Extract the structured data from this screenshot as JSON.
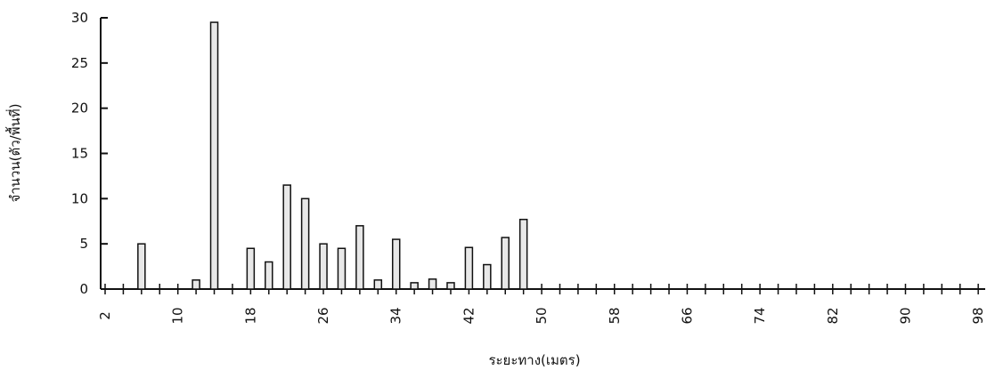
{
  "chart_data": {
    "type": "bar",
    "x_label": "ระยะทาง(เมตร)",
    "y_label": "จำนวน(ตัว/พื้นที่)",
    "categories": [
      "2",
      null,
      null,
      null,
      "10",
      null,
      null,
      null,
      "18",
      null,
      null,
      null,
      "26",
      null,
      null,
      null,
      "34",
      null,
      null,
      null,
      "42",
      null,
      null,
      null,
      "50",
      null,
      null,
      null,
      "58",
      null,
      null,
      null,
      "66",
      null,
      null,
      null,
      "74",
      null,
      null,
      null,
      "82",
      null,
      null,
      null,
      "90",
      null,
      null,
      null,
      "98"
    ],
    "values": [
      0,
      0,
      5,
      0,
      0,
      1,
      29.5,
      0,
      4.5,
      3,
      11.5,
      10,
      5,
      4.5,
      7,
      1,
      5.5,
      0.7,
      1.1,
      0.7,
      4.6,
      2.7,
      5.7,
      7.7,
      0,
      0,
      0,
      0,
      0,
      0,
      0,
      0,
      0,
      0,
      0,
      0,
      0,
      0,
      0,
      0,
      0,
      0,
      0,
      0,
      0,
      0,
      0,
      0,
      0
    ],
    "color": "#e8e8e8",
    "ylim": [
      0,
      30
    ],
    "yticks": [
      0,
      5,
      10,
      15,
      20,
      25,
      30
    ]
  }
}
